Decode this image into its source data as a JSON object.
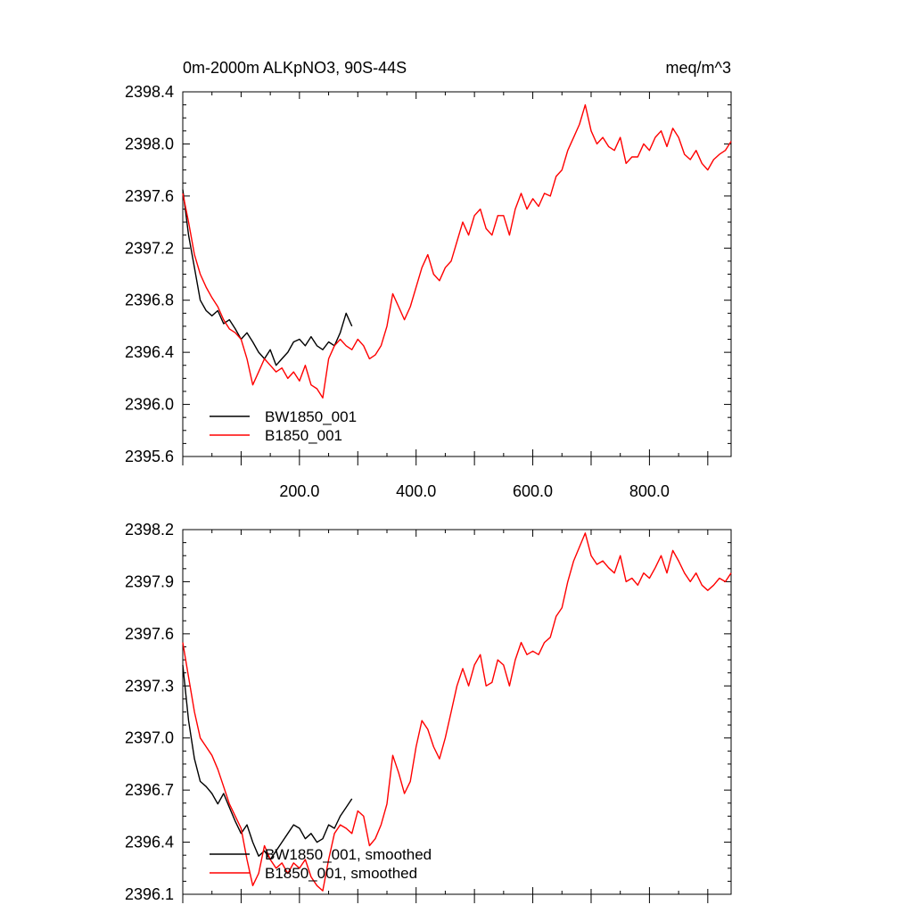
{
  "chart_data": [
    {
      "type": "line",
      "title": "0m-2000m ALKpNO3, 90S-44S",
      "units": "meq/m^3",
      "xlim": [
        0,
        940
      ],
      "ylim": [
        2395.6,
        2398.4
      ],
      "xticks": [
        200,
        400,
        600,
        800
      ],
      "xtick_labels": [
        "200.0",
        "400.0",
        "600.0",
        "800.0"
      ],
      "yticks": [
        2395.6,
        2396.0,
        2396.4,
        2396.8,
        2397.2,
        2397.6,
        2398.0,
        2398.4
      ],
      "ytick_labels": [
        "2395.6",
        "2396.0",
        "2396.4",
        "2396.8",
        "2397.2",
        "2397.6",
        "2398.0",
        "2398.4"
      ],
      "legend_position": "bottom-left",
      "series": [
        {
          "name": "BW1850_001",
          "color": "#000000",
          "points": [
            [
              0,
              2397.65
            ],
            [
              10,
              2397.3
            ],
            [
              20,
              2397.05
            ],
            [
              30,
              2396.8
            ],
            [
              40,
              2396.72
            ],
            [
              50,
              2396.68
            ],
            [
              60,
              2396.72
            ],
            [
              70,
              2396.62
            ],
            [
              80,
              2396.65
            ],
            [
              90,
              2396.58
            ],
            [
              100,
              2396.5
            ],
            [
              110,
              2396.55
            ],
            [
              120,
              2396.48
            ],
            [
              130,
              2396.4
            ],
            [
              140,
              2396.35
            ],
            [
              150,
              2396.42
            ],
            [
              160,
              2396.3
            ],
            [
              170,
              2396.35
            ],
            [
              180,
              2396.4
            ],
            [
              190,
              2396.48
            ],
            [
              200,
              2396.5
            ],
            [
              210,
              2396.45
            ],
            [
              220,
              2396.52
            ],
            [
              230,
              2396.45
            ],
            [
              240,
              2396.42
            ],
            [
              250,
              2396.48
            ],
            [
              260,
              2396.45
            ],
            [
              270,
              2396.55
            ],
            [
              280,
              2396.7
            ],
            [
              290,
              2396.6
            ]
          ]
        },
        {
          "name": "B1850_001",
          "color": "#ff0000",
          "points": [
            [
              0,
              2397.62
            ],
            [
              10,
              2397.4
            ],
            [
              20,
              2397.15
            ],
            [
              30,
              2397.0
            ],
            [
              40,
              2396.9
            ],
            [
              50,
              2396.82
            ],
            [
              60,
              2396.75
            ],
            [
              70,
              2396.65
            ],
            [
              80,
              2396.58
            ],
            [
              90,
              2396.55
            ],
            [
              100,
              2396.5
            ],
            [
              110,
              2396.35
            ],
            [
              120,
              2396.15
            ],
            [
              130,
              2396.25
            ],
            [
              140,
              2396.35
            ],
            [
              150,
              2396.3
            ],
            [
              160,
              2396.25
            ],
            [
              170,
              2396.28
            ],
            [
              180,
              2396.2
            ],
            [
              190,
              2396.25
            ],
            [
              200,
              2396.18
            ],
            [
              210,
              2396.3
            ],
            [
              220,
              2396.15
            ],
            [
              230,
              2396.12
            ],
            [
              240,
              2396.05
            ],
            [
              250,
              2396.35
            ],
            [
              260,
              2396.45
            ],
            [
              270,
              2396.5
            ],
            [
              280,
              2396.45
            ],
            [
              290,
              2396.42
            ],
            [
              300,
              2396.5
            ],
            [
              310,
              2396.45
            ],
            [
              320,
              2396.35
            ],
            [
              330,
              2396.38
            ],
            [
              340,
              2396.45
            ],
            [
              350,
              2396.6
            ],
            [
              360,
              2396.85
            ],
            [
              370,
              2396.75
            ],
            [
              380,
              2396.65
            ],
            [
              390,
              2396.75
            ],
            [
              400,
              2396.9
            ],
            [
              410,
              2397.05
            ],
            [
              420,
              2397.15
            ],
            [
              430,
              2397.0
            ],
            [
              440,
              2396.95
            ],
            [
              450,
              2397.05
            ],
            [
              460,
              2397.1
            ],
            [
              470,
              2397.25
            ],
            [
              480,
              2397.4
            ],
            [
              490,
              2397.3
            ],
            [
              500,
              2397.45
            ],
            [
              510,
              2397.5
            ],
            [
              520,
              2397.35
            ],
            [
              530,
              2397.3
            ],
            [
              540,
              2397.45
            ],
            [
              550,
              2397.45
            ],
            [
              560,
              2397.3
            ],
            [
              570,
              2397.5
            ],
            [
              580,
              2397.62
            ],
            [
              590,
              2397.5
            ],
            [
              600,
              2397.58
            ],
            [
              610,
              2397.52
            ],
            [
              620,
              2397.62
            ],
            [
              630,
              2397.6
            ],
            [
              640,
              2397.75
            ],
            [
              650,
              2397.8
            ],
            [
              660,
              2397.95
            ],
            [
              670,
              2398.05
            ],
            [
              680,
              2398.15
            ],
            [
              690,
              2398.3
            ],
            [
              700,
              2398.1
            ],
            [
              710,
              2398.0
            ],
            [
              720,
              2398.05
            ],
            [
              730,
              2397.98
            ],
            [
              740,
              2397.95
            ],
            [
              750,
              2398.05
            ],
            [
              760,
              2397.85
            ],
            [
              770,
              2397.9
            ],
            [
              780,
              2397.9
            ],
            [
              790,
              2398.0
            ],
            [
              800,
              2397.95
            ],
            [
              810,
              2398.05
            ],
            [
              820,
              2398.1
            ],
            [
              830,
              2397.98
            ],
            [
              840,
              2398.12
            ],
            [
              850,
              2398.05
            ],
            [
              860,
              2397.92
            ],
            [
              870,
              2397.88
            ],
            [
              880,
              2397.95
            ],
            [
              890,
              2397.85
            ],
            [
              900,
              2397.8
            ],
            [
              910,
              2397.88
            ],
            [
              920,
              2397.92
            ],
            [
              930,
              2397.95
            ],
            [
              940,
              2398.02
            ]
          ]
        }
      ]
    },
    {
      "type": "line",
      "xlim": [
        0,
        940
      ],
      "ylim": [
        2396.1,
        2398.2
      ],
      "yticks": [
        2396.1,
        2396.4,
        2396.7,
        2397.0,
        2397.3,
        2397.6,
        2397.9,
        2398.2
      ],
      "ytick_labels": [
        "2396.1",
        "2396.4",
        "2396.7",
        "2397.0",
        "2397.3",
        "2397.6",
        "2397.9",
        "2398.2"
      ],
      "legend_position": "bottom-left",
      "series": [
        {
          "name": "BW1850_001, smoothed",
          "color": "#000000",
          "points": [
            [
              0,
              2397.42
            ],
            [
              10,
              2397.1
            ],
            [
              20,
              2396.88
            ],
            [
              30,
              2396.75
            ],
            [
              40,
              2396.72
            ],
            [
              50,
              2396.68
            ],
            [
              60,
              2396.62
            ],
            [
              70,
              2396.68
            ],
            [
              80,
              2396.6
            ],
            [
              90,
              2396.52
            ],
            [
              100,
              2396.45
            ],
            [
              110,
              2396.5
            ],
            [
              120,
              2396.4
            ],
            [
              130,
              2396.32
            ],
            [
              140,
              2396.35
            ],
            [
              150,
              2396.3
            ],
            [
              160,
              2396.35
            ],
            [
              170,
              2396.4
            ],
            [
              180,
              2396.45
            ],
            [
              190,
              2396.5
            ],
            [
              200,
              2396.48
            ],
            [
              210,
              2396.42
            ],
            [
              220,
              2396.45
            ],
            [
              230,
              2396.4
            ],
            [
              240,
              2396.42
            ],
            [
              250,
              2396.5
            ],
            [
              260,
              2396.48
            ],
            [
              270,
              2396.55
            ],
            [
              280,
              2396.6
            ],
            [
              290,
              2396.65
            ]
          ]
        },
        {
          "name": "B1850_001, smoothed",
          "color": "#ff0000",
          "points": [
            [
              0,
              2397.55
            ],
            [
              10,
              2397.35
            ],
            [
              20,
              2397.15
            ],
            [
              30,
              2397.0
            ],
            [
              40,
              2396.95
            ],
            [
              50,
              2396.9
            ],
            [
              60,
              2396.82
            ],
            [
              70,
              2396.72
            ],
            [
              80,
              2396.62
            ],
            [
              90,
              2396.55
            ],
            [
              100,
              2396.48
            ],
            [
              110,
              2396.3
            ],
            [
              120,
              2396.15
            ],
            [
              130,
              2396.22
            ],
            [
              140,
              2396.38
            ],
            [
              150,
              2396.3
            ],
            [
              160,
              2396.25
            ],
            [
              170,
              2396.28
            ],
            [
              180,
              2396.22
            ],
            [
              190,
              2396.28
            ],
            [
              200,
              2396.25
            ],
            [
              210,
              2396.3
            ],
            [
              220,
              2396.2
            ],
            [
              230,
              2396.15
            ],
            [
              240,
              2396.12
            ],
            [
              250,
              2396.3
            ],
            [
              260,
              2396.45
            ],
            [
              270,
              2396.5
            ],
            [
              280,
              2396.48
            ],
            [
              290,
              2396.45
            ],
            [
              300,
              2396.58
            ],
            [
              310,
              2396.55
            ],
            [
              320,
              2396.38
            ],
            [
              330,
              2396.42
            ],
            [
              340,
              2396.5
            ],
            [
              350,
              2396.62
            ],
            [
              360,
              2396.9
            ],
            [
              370,
              2396.8
            ],
            [
              380,
              2396.68
            ],
            [
              390,
              2396.75
            ],
            [
              400,
              2396.95
            ],
            [
              410,
              2397.1
            ],
            [
              420,
              2397.05
            ],
            [
              430,
              2396.95
            ],
            [
              440,
              2396.88
            ],
            [
              450,
              2397.0
            ],
            [
              460,
              2397.15
            ],
            [
              470,
              2397.3
            ],
            [
              480,
              2397.4
            ],
            [
              490,
              2397.3
            ],
            [
              500,
              2397.42
            ],
            [
              510,
              2397.48
            ],
            [
              520,
              2397.3
            ],
            [
              530,
              2397.32
            ],
            [
              540,
              2397.45
            ],
            [
              550,
              2397.42
            ],
            [
              560,
              2397.3
            ],
            [
              570,
              2397.45
            ],
            [
              580,
              2397.55
            ],
            [
              590,
              2397.48
            ],
            [
              600,
              2397.5
            ],
            [
              610,
              2397.48
            ],
            [
              620,
              2397.55
            ],
            [
              630,
              2397.58
            ],
            [
              640,
              2397.7
            ],
            [
              650,
              2397.75
            ],
            [
              660,
              2397.9
            ],
            [
              670,
              2398.02
            ],
            [
              680,
              2398.1
            ],
            [
              690,
              2398.18
            ],
            [
              700,
              2398.05
            ],
            [
              710,
              2398.0
            ],
            [
              720,
              2398.02
            ],
            [
              730,
              2397.98
            ],
            [
              740,
              2397.95
            ],
            [
              750,
              2398.05
            ],
            [
              760,
              2397.9
            ],
            [
              770,
              2397.92
            ],
            [
              780,
              2397.88
            ],
            [
              790,
              2397.95
            ],
            [
              800,
              2397.92
            ],
            [
              810,
              2397.98
            ],
            [
              820,
              2398.05
            ],
            [
              830,
              2397.95
            ],
            [
              840,
              2398.08
            ],
            [
              850,
              2398.02
            ],
            [
              860,
              2397.95
            ],
            [
              870,
              2397.9
            ],
            [
              880,
              2397.95
            ],
            [
              890,
              2397.88
            ],
            [
              900,
              2397.85
            ],
            [
              910,
              2397.88
            ],
            [
              920,
              2397.92
            ],
            [
              930,
              2397.9
            ],
            [
              940,
              2397.95
            ]
          ]
        }
      ]
    }
  ]
}
